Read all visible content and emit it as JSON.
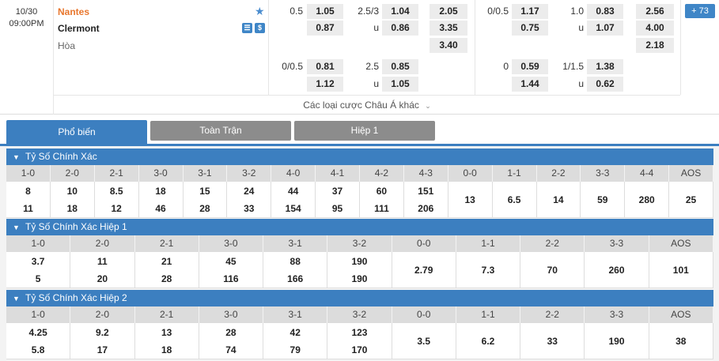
{
  "match": {
    "date": "10/30",
    "time": "09:00PM",
    "home": "Nantes",
    "away": "Clermont",
    "draw": "Hòa",
    "more_bets": "Các loại cược Châu Á khác",
    "more_count": "73"
  },
  "odds": {
    "hdp1": {
      "line": "0.5",
      "h": "1.05",
      "a": "0.87"
    },
    "ou1": {
      "line": "2.5/3",
      "h": "1.04",
      "u": "u",
      "a": "0.86"
    },
    "x12": {
      "h": "2.05",
      "a": "3.35",
      "d": "3.40"
    },
    "hdp1h": {
      "line": "0/0.5",
      "h": "1.17",
      "a": "0.75"
    },
    "ou1h": {
      "line": "1.0",
      "h": "0.83",
      "u": "u",
      "a": "1.07"
    },
    "x12h": {
      "h": "2.56",
      "a": "4.00",
      "d": "2.18"
    },
    "hdp2": {
      "line": "0/0.5",
      "h": "0.81",
      "a": "1.12"
    },
    "ou2": {
      "line": "2.5",
      "h": "0.85",
      "u": "u",
      "a": "1.05"
    },
    "hdp2h": {
      "line": "0",
      "h": "0.59",
      "a": "1.44"
    },
    "ou2h": {
      "line": "1/1.5",
      "h": "1.38",
      "u": "u",
      "a": "0.62"
    }
  },
  "tabs": [
    "Phổ biến",
    "Toàn Trận",
    "Hiệp 1"
  ],
  "sections": [
    {
      "title": "Tỷ Số Chính Xác",
      "headers": [
        "1-0",
        "2-0",
        "2-1",
        "3-0",
        "3-1",
        "3-2",
        "4-0",
        "4-1",
        "4-2",
        "4-3",
        "0-0",
        "1-1",
        "2-2",
        "3-3",
        "4-4",
        "AOS"
      ],
      "home": [
        "8",
        "10",
        "8.5",
        "18",
        "15",
        "24",
        "44",
        "37",
        "60",
        "151"
      ],
      "away": [
        "11",
        "18",
        "12",
        "46",
        "28",
        "33",
        "154",
        "95",
        "111",
        "206"
      ],
      "single": [
        "13",
        "6.5",
        "14",
        "59",
        "280",
        "25"
      ]
    },
    {
      "title": "Tỷ Số Chính Xác Hiệp 1",
      "headers": [
        "1-0",
        "2-0",
        "2-1",
        "3-0",
        "3-1",
        "3-2",
        "0-0",
        "1-1",
        "2-2",
        "3-3",
        "AOS"
      ],
      "home": [
        "3.7",
        "11",
        "21",
        "45",
        "88",
        "190"
      ],
      "away": [
        "5",
        "20",
        "28",
        "116",
        "166",
        "190"
      ],
      "single": [
        "2.79",
        "7.3",
        "70",
        "260",
        "101"
      ]
    },
    {
      "title": "Tỷ Số Chính Xác Hiệp 2",
      "headers": [
        "1-0",
        "2-0",
        "2-1",
        "3-0",
        "3-1",
        "3-2",
        "0-0",
        "1-1",
        "2-2",
        "3-3",
        "AOS"
      ],
      "home": [
        "4.25",
        "9.2",
        "13",
        "28",
        "42",
        "123"
      ],
      "away": [
        "5.8",
        "17",
        "18",
        "74",
        "79",
        "170"
      ],
      "single": [
        "3.5",
        "6.2",
        "33",
        "190",
        "38"
      ]
    }
  ]
}
